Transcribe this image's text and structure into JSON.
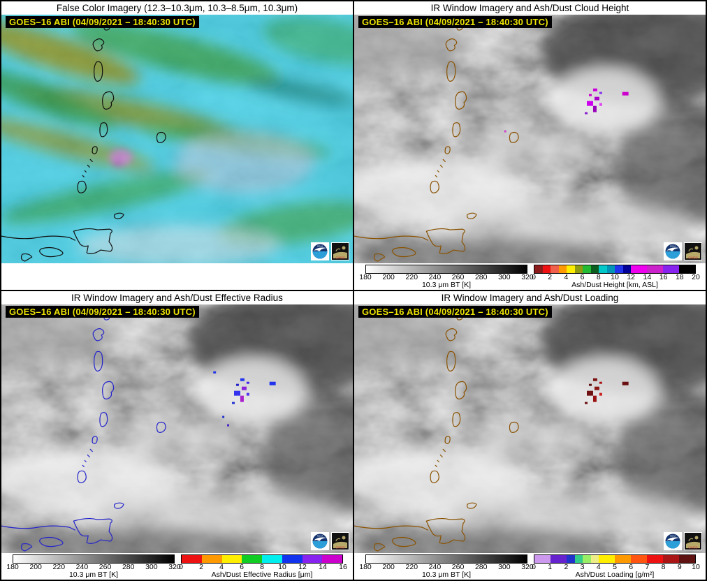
{
  "panels": [
    {
      "id": "false-color",
      "title": "False Color Imagery (12.3–10.3μm, 10.3–8.5μm, 10.3μm)",
      "timestamp": "GOES–16 ABI (04/09/2021 – 18:40:30 UTC)",
      "coastline_color": "#101010",
      "colorbars": []
    },
    {
      "id": "ash-cloud-height",
      "title": "IR Window Imagery and Ash/Dust Cloud Height",
      "timestamp": "GOES–16 ABI (04/09/2021 – 18:40:30 UTC)",
      "coastline_color": "#8a5200",
      "ash_overlay_color": "#cc00cc",
      "colorbars": [
        "bt",
        "height"
      ]
    },
    {
      "id": "ash-effective-radius",
      "title": "IR Window Imagery and Ash/Dust Effective Radius",
      "timestamp": "GOES–16 ABI (04/09/2021 – 18:40:30 UTC)",
      "coastline_color": "#2323cc",
      "ash_overlay_color": "#2233ee",
      "colorbars": [
        "bt",
        "radius"
      ]
    },
    {
      "id": "ash-loading",
      "title": "IR Window Imagery and Ash/Dust Loading",
      "timestamp": "GOES–16 ABI (04/09/2021 – 18:40:30 UTC)",
      "coastline_color": "#8a5200",
      "ash_overlay_color": "#7a1212",
      "colorbars": [
        "bt",
        "loading"
      ]
    }
  ],
  "colorbars": {
    "bt": {
      "label": "10.3 μm BT [K]",
      "ticks": [
        "180",
        "200",
        "220",
        "240",
        "260",
        "280",
        "300",
        "320"
      ],
      "gradient": [
        "#ffffff",
        "#000000"
      ]
    },
    "height": {
      "label": "Ash/Dust Height [km, ASL]",
      "ticks": [
        "0",
        "2",
        "4",
        "6",
        "8",
        "10",
        "12",
        "14",
        "16",
        "18",
        "20"
      ],
      "segments": [
        [
          "#8b1a1a",
          1
        ],
        [
          "#ee1111",
          1
        ],
        [
          "#f0604a",
          1
        ],
        [
          "#ff9900",
          1
        ],
        [
          "#ffee00",
          1
        ],
        [
          "#8f9b10",
          1
        ],
        [
          "#22bb33",
          1
        ],
        [
          "#0b5e20",
          1
        ],
        [
          "#00c8c8",
          1
        ],
        [
          "#0095b8",
          1
        ],
        [
          "#2233ee",
          1
        ],
        [
          "#000099",
          1
        ],
        [
          "#ee00ee",
          2
        ],
        [
          "#cc22cc",
          2
        ],
        [
          "#8822ee",
          2
        ],
        [
          "#000000",
          2
        ]
      ]
    },
    "radius": {
      "label": "Ash/Dust Effective Radius [μm]",
      "ticks": [
        "0",
        "2",
        "4",
        "6",
        "8",
        "10",
        "12",
        "14",
        "16"
      ],
      "segments": [
        [
          "#ee1111",
          2
        ],
        [
          "#ff9900",
          2
        ],
        [
          "#ffee00",
          2
        ],
        [
          "#11cc22",
          2
        ],
        [
          "#00eeee",
          2
        ],
        [
          "#1133ee",
          2
        ],
        [
          "#8822ee",
          2
        ],
        [
          "#cc00cc",
          2
        ]
      ]
    },
    "loading": {
      "label": "Ash/Dust Loading [g/m²]",
      "ticks": [
        "0",
        "1",
        "2",
        "3",
        "4",
        "5",
        "6",
        "7",
        "8",
        "9",
        "10"
      ],
      "segments": [
        [
          "#cc99ee",
          1
        ],
        [
          "#6622cc",
          1
        ],
        [
          "#2233cc",
          0.5
        ],
        [
          "#33cc88",
          0.5
        ],
        [
          "#99ee66",
          0.5
        ],
        [
          "#eeee88",
          0.5
        ],
        [
          "#ffee00",
          1
        ],
        [
          "#ff9900",
          1
        ],
        [
          "#ff5511",
          1
        ],
        [
          "#ee1111",
          1
        ],
        [
          "#aa1515",
          1
        ],
        [
          "#5e1212",
          1
        ]
      ]
    }
  },
  "logos": {
    "noaa": "NOAA",
    "cimss": "CIMSS"
  }
}
